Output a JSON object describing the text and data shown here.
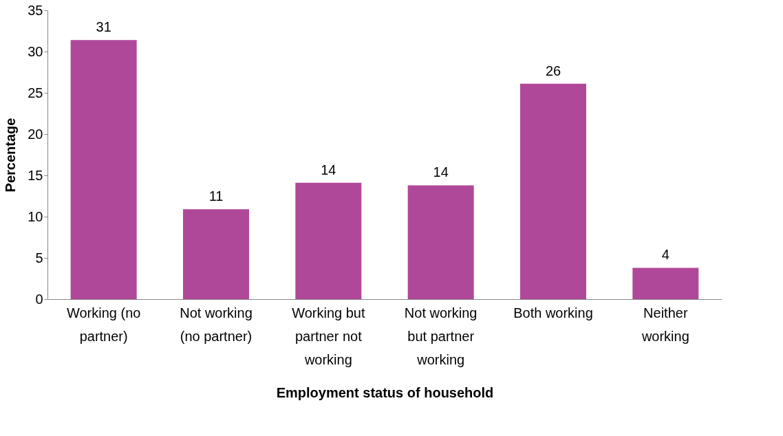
{
  "chart_data": {
    "type": "bar",
    "xlabel": "Employment status of household",
    "ylabel": "Percentage",
    "categories": [
      "Working (no partner)",
      "Not working (no partner)",
      "Working but partner not working",
      "Not working but partner working",
      "Both working",
      "Neither working"
    ],
    "values": [
      31.4,
      10.9,
      14.1,
      13.8,
      26.1,
      3.8
    ],
    "value_labels": [
      "31",
      "11",
      "14",
      "14",
      "26",
      "4"
    ],
    "color": "#b0489a",
    "ylim": [
      0,
      35
    ],
    "yticks": [
      0,
      5,
      10,
      15,
      20,
      25,
      30,
      35
    ],
    "grid": false
  }
}
